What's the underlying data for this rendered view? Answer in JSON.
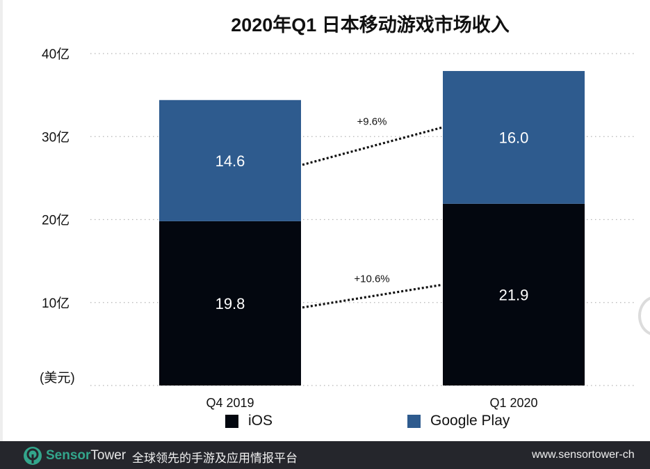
{
  "chart_data": {
    "type": "bar",
    "stacked": true,
    "title": "2020年Q1 日本移动游戏市场收入",
    "ylabel": "(美元)",
    "ylim": [
      0,
      40
    ],
    "yticks": [
      {
        "value": 10,
        "label": "10亿"
      },
      {
        "value": 20,
        "label": "20亿"
      },
      {
        "value": 30,
        "label": "30亿"
      },
      {
        "value": 40,
        "label": "40亿"
      }
    ],
    "grid": true,
    "categories": [
      "Q4  2019",
      "Q1 2020"
    ],
    "series": [
      {
        "name": "iOS",
        "color": "#03070f",
        "values": [
          19.8,
          21.9
        ],
        "labels": [
          "19.8",
          "21.9"
        ]
      },
      {
        "name": "Google Play",
        "color": "#2e5b8e",
        "values": [
          14.6,
          16.0
        ],
        "labels": [
          "14.6",
          "16.0"
        ]
      }
    ],
    "annotations": [
      {
        "series": "Google Play",
        "text": "+9.6%"
      },
      {
        "series": "iOS",
        "text": "+10.6%"
      }
    ],
    "legend_position": "bottom"
  },
  "footer": {
    "brand_part1": "Sensor",
    "brand_part2": "Tower",
    "tagline": "全球领先的手游及应用情报平台",
    "url": "www.sensortower-ch",
    "brand_color": "#33a68c",
    "background": "#25262c"
  }
}
